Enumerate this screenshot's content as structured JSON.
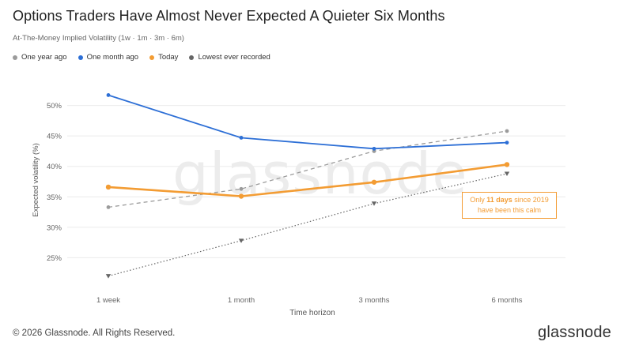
{
  "header": {
    "title": "Options Traders Have Almost Never Expected A Quieter Six Months",
    "subtitle": "At-The-Money Implied Volatility (1w · 1m · 3m · 6m)"
  },
  "footer": {
    "copyright": "© 2026 Glassnode. All Rights Reserved.",
    "logo": "glassnode"
  },
  "watermark": "glassnode",
  "callout": {
    "line1_pre": "Only ",
    "line1_bold": "11 days",
    "line1_post": " since 2019",
    "line2": "have been this calm"
  },
  "chart_data": {
    "type": "line",
    "categories": [
      "1 week",
      "1 month",
      "3 months",
      "6 months"
    ],
    "xlabel": "Time horizon",
    "ylabel": "Expected volatility (%)",
    "ylim": [
      20,
      55
    ],
    "yticks": [
      25,
      30,
      35,
      40,
      45,
      50
    ],
    "ytick_labels": [
      "25%",
      "30%",
      "35%",
      "40%",
      "45%",
      "50%"
    ],
    "grid": true,
    "legend_position": "top-left",
    "series": [
      {
        "name": "One year ago",
        "values": [
          33.3,
          36.3,
          42.5,
          45.8
        ],
        "color": "#9b9b9b",
        "style": "dashed",
        "marker": "circle"
      },
      {
        "name": "One month ago",
        "values": [
          51.7,
          44.7,
          42.9,
          43.9
        ],
        "color": "#2d6fd6",
        "style": "solid",
        "marker": "circle"
      },
      {
        "name": "Today",
        "values": [
          36.6,
          35.1,
          37.4,
          40.3
        ],
        "color": "#f39c33",
        "style": "solid-thick",
        "marker": "circle"
      },
      {
        "name": "Lowest ever recorded",
        "values": [
          22.0,
          27.8,
          33.9,
          38.8
        ],
        "color": "#666666",
        "style": "dotted",
        "marker": "triangle"
      }
    ]
  }
}
